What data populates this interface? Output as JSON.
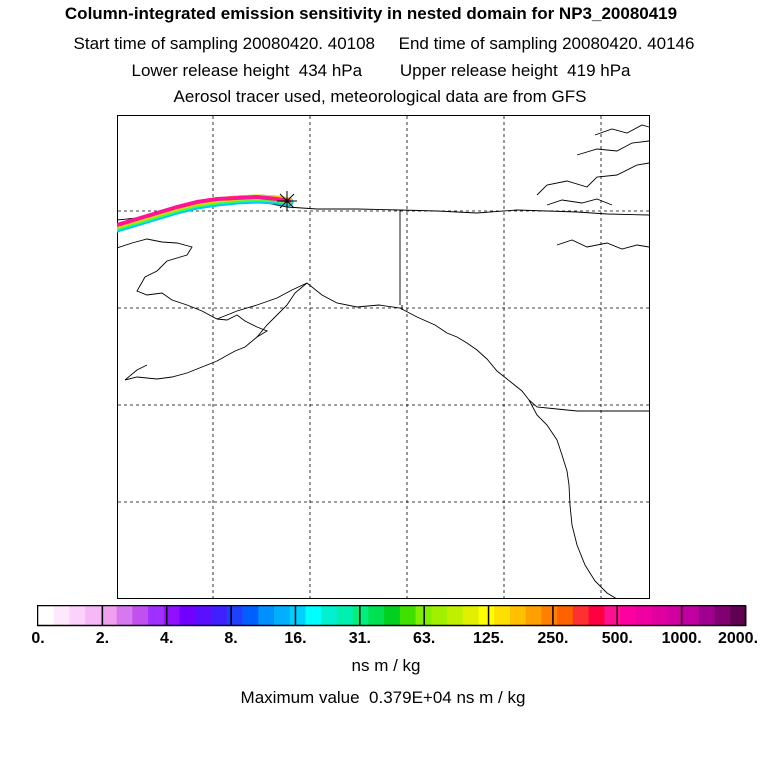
{
  "header": {
    "title": "Column-integrated emission sensitivity in nested domain for NP3_20080419",
    "sampling_line": "Start time of sampling 20080420. 40108     End time of sampling 20080420. 40146",
    "release_line": "Lower release height  434 hPa        Upper release height  419 hPa",
    "tracer_line": "Aerosol tracer used, meteorological data are from GFS"
  },
  "map": {
    "region": "Alaska and Pacific Northwest",
    "release_marker": "asterisk",
    "plume_colors": [
      "#00c8ff",
      "#40ff40",
      "#ffd000",
      "#ff1493",
      "#ff00a0"
    ]
  },
  "colorbar": {
    "colors": [
      "#ffffff",
      "#fde8fd",
      "#fbd2fb",
      "#f7b8f7",
      "#f0a0f0",
      "#d678f0",
      "#c050f0",
      "#a030ff",
      "#9010ff",
      "#7000ff",
      "#5a10ff",
      "#4020ff",
      "#2040ff",
      "#0060ff",
      "#0090ff",
      "#00b0ff",
      "#00d0ff",
      "#00ffff",
      "#00f0d0",
      "#00f0b0",
      "#00f080",
      "#00e050",
      "#00d020",
      "#40e000",
      "#80f000",
      "#a0f000",
      "#c0f000",
      "#e0f000",
      "#ffff00",
      "#ffe000",
      "#ffc000",
      "#ffa000",
      "#ff8000",
      "#ff6000",
      "#ff3030",
      "#ff0040",
      "#ff1090",
      "#ff00a0",
      "#f000a0",
      "#e000a0",
      "#d000a0",
      "#c000a0",
      "#a00090",
      "#800070",
      "#600050"
    ],
    "tick_labels": [
      "0.",
      "2.",
      "4.",
      "8.",
      "16.",
      "31.",
      "63.",
      "125.",
      "250.",
      "500.",
      "1000.",
      "2000."
    ],
    "units": "ns m / kg",
    "max_value": "Maximum value  0.379E+04 ns m / kg"
  }
}
